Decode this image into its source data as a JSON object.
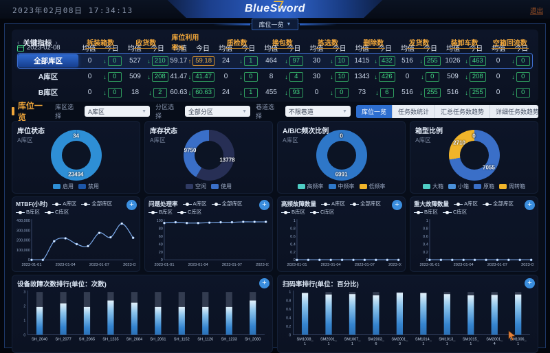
{
  "header": {
    "datetime": "2023年02月08日 17:34:13",
    "logo": "BlueSword",
    "logout": "退出",
    "tab": "库位一览"
  },
  "indicators": {
    "title": "关键指标",
    "date": "2023-02-08",
    "avg_label": "均值",
    "today_label": "今日",
    "columns": [
      "拆装箱数",
      "收货数",
      "库位利用率%",
      "质检数",
      "换包数",
      "拣选数",
      "删除数",
      "发货数",
      "装卸车数",
      "空箱回流数"
    ],
    "rows": [
      {
        "label": "全部库区",
        "selected": true,
        "cells": [
          {
            "avg": "0",
            "today": "0",
            "dir": "down",
            "accent": "green"
          },
          {
            "avg": "527",
            "today": "210",
            "dir": "down",
            "accent": "green"
          },
          {
            "avg": "59.17",
            "today": "59.18",
            "dir": "up",
            "accent": "orange"
          },
          {
            "avg": "24",
            "today": "1",
            "dir": "down",
            "accent": "green"
          },
          {
            "avg": "464",
            "today": "97",
            "dir": "down",
            "accent": "green"
          },
          {
            "avg": "30",
            "today": "10",
            "dir": "down",
            "accent": "green"
          },
          {
            "avg": "1415",
            "today": "432",
            "dir": "down",
            "accent": "green"
          },
          {
            "avg": "516",
            "today": "255",
            "dir": "down",
            "accent": "green"
          },
          {
            "avg": "1026",
            "today": "463",
            "dir": "down",
            "accent": "green"
          },
          {
            "avg": "0",
            "today": "0",
            "dir": "down",
            "accent": "green"
          }
        ]
      },
      {
        "label": "A库区",
        "selected": false,
        "cells": [
          {
            "avg": "0",
            "today": "0",
            "dir": "down",
            "accent": "green"
          },
          {
            "avg": "509",
            "today": "208",
            "dir": "down",
            "accent": "green"
          },
          {
            "avg": "41.47",
            "today": "41.47",
            "dir": "down",
            "accent": "green"
          },
          {
            "avg": "0",
            "today": "0",
            "dir": "down",
            "accent": "green"
          },
          {
            "avg": "8",
            "today": "4",
            "dir": "down",
            "accent": "green"
          },
          {
            "avg": "30",
            "today": "10",
            "dir": "down",
            "accent": "green"
          },
          {
            "avg": "1343",
            "today": "426",
            "dir": "down",
            "accent": "green"
          },
          {
            "avg": "0",
            "today": "0",
            "dir": "down",
            "accent": "green"
          },
          {
            "avg": "509",
            "today": "208",
            "dir": "down",
            "accent": "green"
          },
          {
            "avg": "0",
            "today": "0",
            "dir": "down",
            "accent": "green"
          }
        ]
      },
      {
        "label": "B库区",
        "selected": false,
        "cells": [
          {
            "avg": "0",
            "today": "0",
            "dir": "down",
            "accent": "green"
          },
          {
            "avg": "18",
            "today": "2",
            "dir": "down",
            "accent": "green"
          },
          {
            "avg": "60.63",
            "today": "60.63",
            "dir": "down",
            "accent": "green"
          },
          {
            "avg": "24",
            "today": "1",
            "dir": "down",
            "accent": "green"
          },
          {
            "avg": "455",
            "today": "93",
            "dir": "down",
            "accent": "green"
          },
          {
            "avg": "0",
            "today": "0",
            "dir": "down",
            "accent": "green"
          },
          {
            "avg": "73",
            "today": "6",
            "dir": "down",
            "accent": "green"
          },
          {
            "avg": "516",
            "today": "255",
            "dir": "down",
            "accent": "green"
          },
          {
            "avg": "516",
            "today": "255",
            "dir": "down",
            "accent": "green"
          },
          {
            "avg": "0",
            "today": "0",
            "dir": "down",
            "accent": "green"
          }
        ]
      }
    ]
  },
  "filters": {
    "title": "库位一览",
    "selects": [
      {
        "label": "库区选择",
        "value": "A库区"
      },
      {
        "label": "分区选择",
        "value": "全部分区"
      },
      {
        "label": "巷道选择",
        "value": "不限巷道"
      }
    ],
    "buttons": [
      {
        "label": "库位一览",
        "active": true
      },
      {
        "label": "任务数统计",
        "active": false
      },
      {
        "label": "汇总任务数趋势",
        "active": false
      },
      {
        "label": "详细任务数趋势",
        "active": false
      }
    ]
  },
  "donuts": [
    {
      "title": "库位状态",
      "subtitle": "A库区",
      "segments": [
        {
          "label": "禁用",
          "value": 34,
          "color": "#1d56a8"
        },
        {
          "label": "启用",
          "value": 23494,
          "color": "#2e8fd6"
        }
      ],
      "legend": [
        {
          "label": "启用",
          "color": "#2e8fd6"
        },
        {
          "label": "禁用",
          "color": "#1d56a8"
        }
      ]
    },
    {
      "title": "库存状态",
      "subtitle": "A库区",
      "segments": [
        {
          "label": "空闲",
          "value": 13778,
          "color": "#272f55"
        },
        {
          "label": "使用",
          "value": 9750,
          "color": "#3a6fc8"
        }
      ],
      "legend": [
        {
          "label": "空闲",
          "color": "#2f3a63"
        },
        {
          "label": "使用",
          "color": "#3a6fc8"
        }
      ]
    },
    {
      "title": "A/B/C频次比例",
      "subtitle": "A库区",
      "segments": [
        {
          "label": "高频率",
          "value": 0,
          "color": "#4ecdc4"
        },
        {
          "label": "中频率",
          "value": 6991,
          "color": "#2e77c8"
        },
        {
          "label": "低频率",
          "value": 0,
          "color": "#f0b42a"
        }
      ],
      "legend": [
        {
          "label": "高频率",
          "color": "#4ecdc4"
        },
        {
          "label": "中频率",
          "color": "#2e77c8"
        },
        {
          "label": "低频率",
          "color": "#f0b42a"
        }
      ]
    },
    {
      "title": "箱型比例",
      "subtitle": "A库区",
      "segments": [
        {
          "label": "大箱",
          "value": 0,
          "color": "#4ecdc4"
        },
        {
          "label": "小箱",
          "value": 0,
          "color": "#4a90d9"
        },
        {
          "label": "原箱",
          "value": 7055,
          "color": "#3a6fc8"
        },
        {
          "label": "周转箱",
          "value": 2710,
          "color": "#f0b42a"
        }
      ],
      "legend": [
        {
          "label": "大箱",
          "color": "#4ecdc4"
        },
        {
          "label": "小箱",
          "color": "#4a90d9"
        },
        {
          "label": "原箱",
          "color": "#3a6fc8"
        },
        {
          "label": "周转箱",
          "color": "#f0b42a"
        }
      ]
    }
  ],
  "line_charts": [
    {
      "title": "MTBF(小时)",
      "legend": [
        "A库区",
        "全部库区",
        "B库区",
        "C库区"
      ],
      "x": [
        "2023-01-01",
        "2023-01-02",
        "2023-01-03",
        "2023-01-04",
        "2023-01-05",
        "2023-01-06",
        "2023-01-07",
        "2023-01-08",
        "2023-01-09",
        "2023-01-10"
      ],
      "xtick_indices": [
        0,
        3,
        6,
        9
      ],
      "yticks": [
        "400,000",
        "300,000",
        "200,000",
        "100,000",
        "0"
      ],
      "ymax": 400000,
      "values": [
        0,
        0,
        190000,
        220000,
        160000,
        140000,
        275000,
        230000,
        370000,
        225000
      ],
      "smooth": true
    },
    {
      "title": "问题处理率",
      "legend": [
        "A库区",
        "全部库区",
        "B库区",
        "C库区"
      ],
      "x": [
        "2023-01-01",
        "2023-01-02",
        "2023-01-03",
        "2023-01-04",
        "2023-01-05",
        "2023-01-06",
        "2023-01-07",
        "2023-01-08",
        "2023-01-09",
        "2023-01-10"
      ],
      "xtick_indices": [
        0,
        3,
        6,
        9
      ],
      "yticks": [
        "100",
        "80",
        "60",
        "40",
        "20",
        "0"
      ],
      "ymax": 100,
      "values": [
        94,
        96,
        94,
        94,
        95,
        96,
        96,
        97,
        97,
        97
      ],
      "smooth": true
    },
    {
      "title": "高频故障数量",
      "legend": [
        "A库区",
        "全部库区",
        "B库区",
        "C库区"
      ],
      "x": [
        "2023-01-01",
        "2023-01-02",
        "2023-01-03",
        "2023-01-04",
        "2023-01-05",
        "2023-01-06",
        "2023-01-07",
        "2023-01-08",
        "2023-01-09",
        "2023-01-10"
      ],
      "xtick_indices": [
        0,
        3,
        6,
        9
      ],
      "yticks": [
        "1",
        "0.8",
        "0.6",
        "0.4",
        "0.2",
        "0"
      ],
      "ymax": 1,
      "values": [
        0,
        0,
        0,
        0,
        0,
        0,
        0,
        0,
        0,
        0
      ],
      "smooth": false
    },
    {
      "title": "重大故障数量",
      "legend": [
        "A库区",
        "全部库区",
        "B库区",
        "C库区"
      ],
      "x": [
        "2023-01-01",
        "2023-01-02",
        "2023-01-03",
        "2023-01-04",
        "2023-01-05",
        "2023-01-06",
        "2023-01-07",
        "2023-01-08",
        "2023-01-09",
        "2023-01-10"
      ],
      "xtick_indices": [
        0,
        3,
        6,
        9
      ],
      "yticks": [
        "1",
        "0.8",
        "0.6",
        "0.4",
        "0.2",
        "0"
      ],
      "ymax": 1,
      "values": [
        0,
        0,
        0,
        0,
        0,
        0,
        0,
        0,
        0,
        0
      ],
      "smooth": false
    }
  ],
  "bar_charts": [
    {
      "title": "设备故障次数排行(单位：次数)",
      "yticks": [
        "3",
        "2",
        "1",
        "0"
      ],
      "ymax": 3,
      "categories": [
        "SH_2040",
        "SH_2077",
        "SH_2065",
        "SH_1235",
        "SH_2084",
        "SH_2061",
        "SH_1152",
        "SH_1126",
        "SH_1233",
        "SH_2080"
      ],
      "values": [
        1.95,
        2.2,
        1.95,
        2.4,
        2.25,
        1.95,
        1.95,
        1.95,
        1.95,
        2.4
      ]
    },
    {
      "title": "扫码率排行(单位：百分比)",
      "yticks": [
        "1",
        "0.8",
        "0.6",
        "0.4",
        "0.2",
        "0"
      ],
      "ymax": 1,
      "categories": [
        "SM1008_\n1",
        "SM2001_\n1",
        "SM1007_\n1",
        "SM2003_\n6",
        "SM2001_\n3",
        "SM1014_\n1",
        "SM1013_\n1",
        "SM1015_\n1",
        "SM2001_\n4",
        "SM1006_\n1"
      ],
      "values": [
        0.97,
        0.94,
        0.95,
        0.92,
        0.98,
        0.97,
        0.95,
        0.92,
        0.93,
        0.94
      ]
    }
  ]
}
